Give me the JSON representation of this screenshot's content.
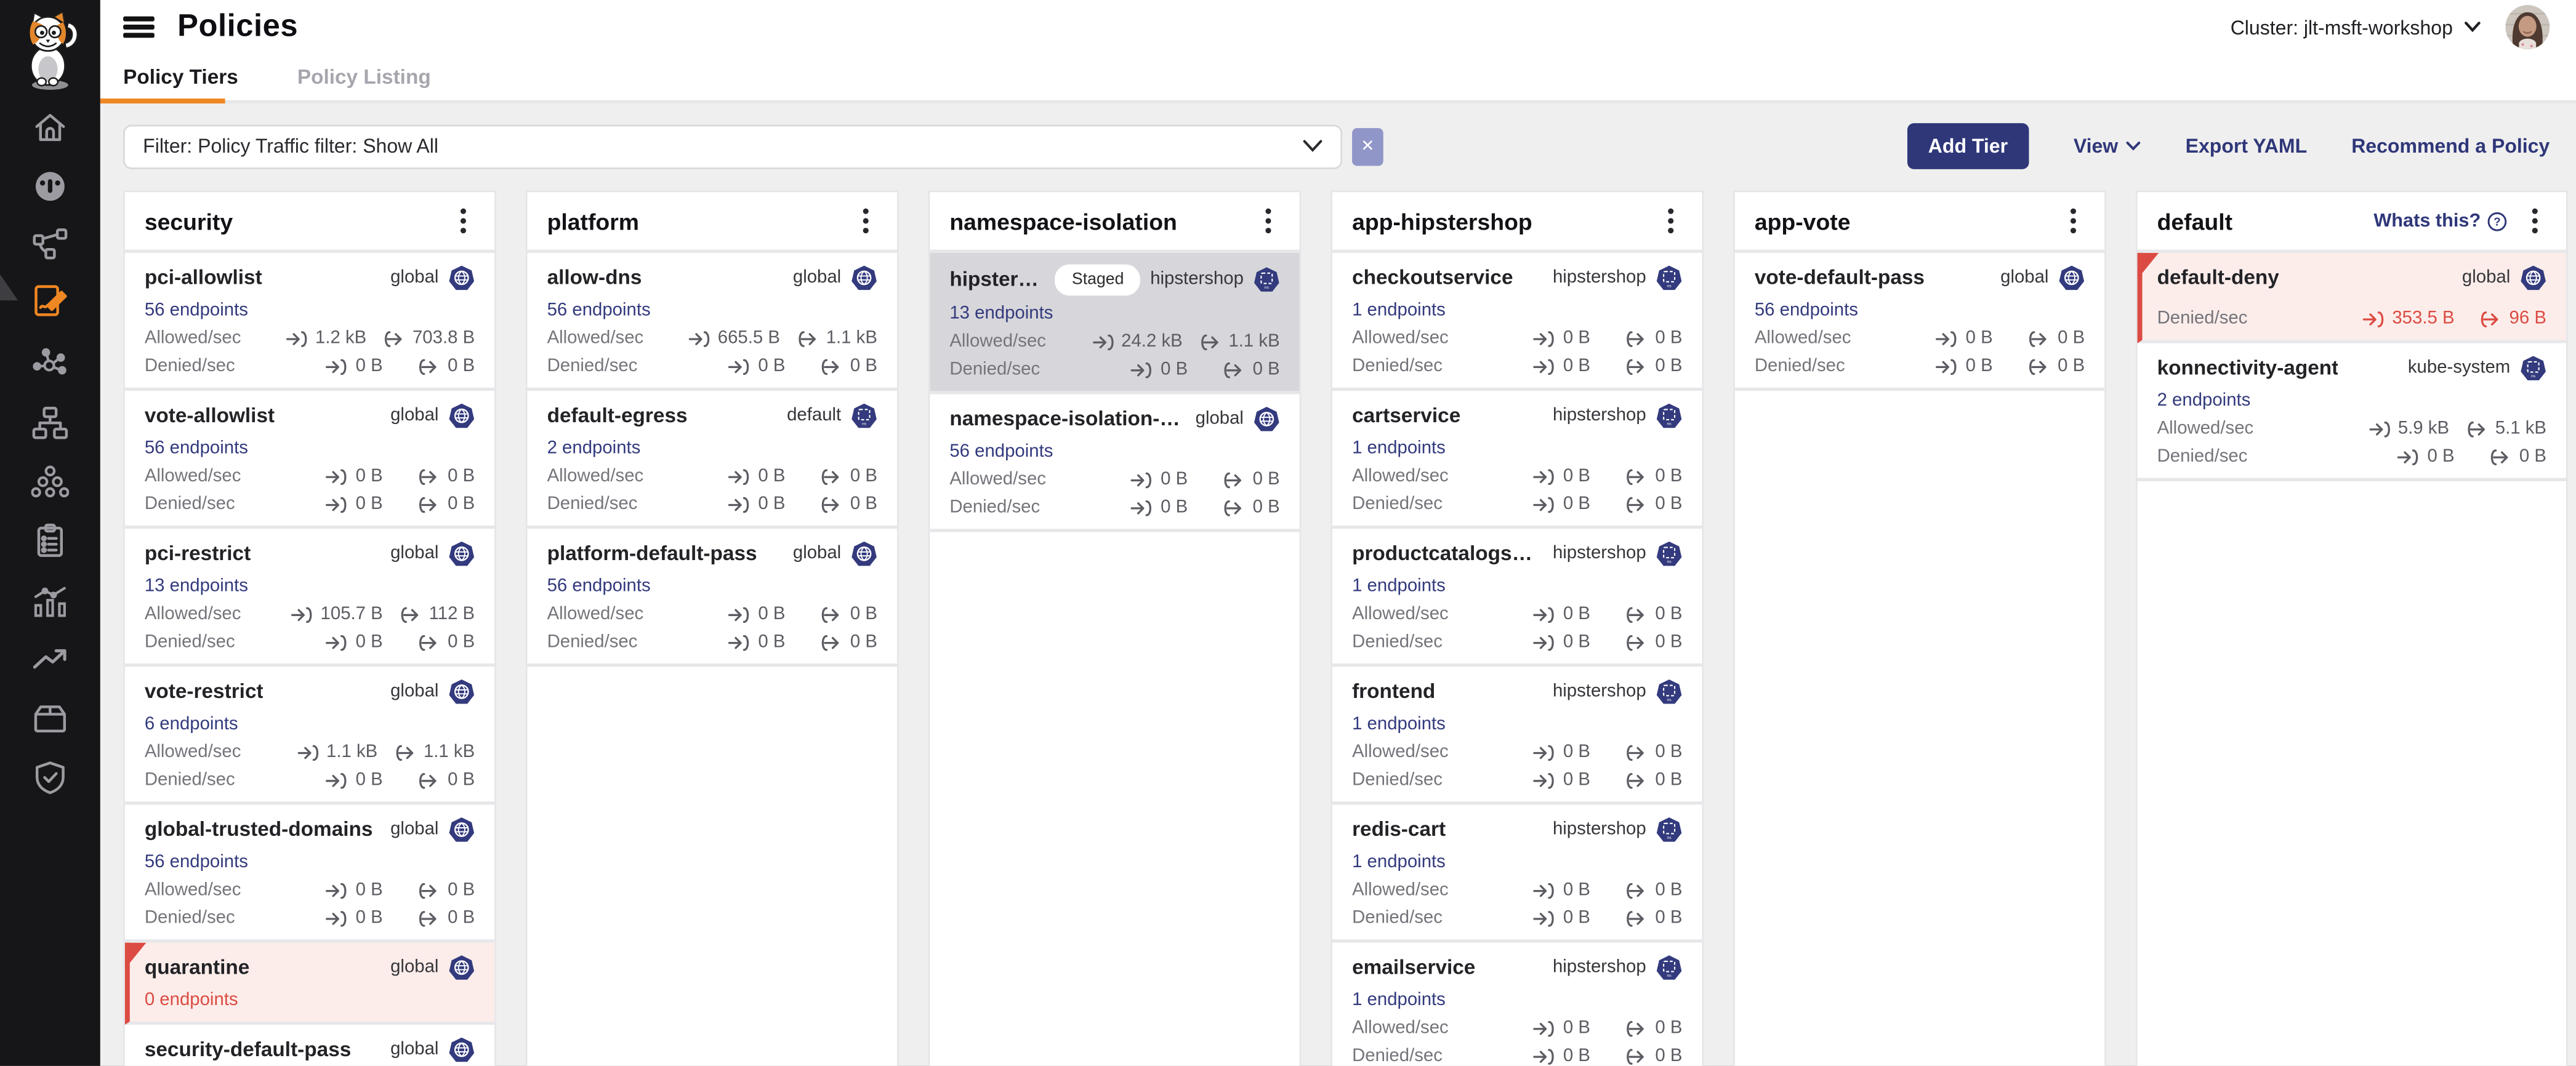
{
  "header": {
    "title": "Policies",
    "cluster_label": "Cluster: jlt-msft-workshop"
  },
  "tabs": {
    "policy_tiers": "Policy Tiers",
    "policy_listing": "Policy Listing"
  },
  "toolbar": {
    "filter_value": "Filter: Policy Traffic filter: Show All",
    "clear_button": "✕",
    "add_tier": "Add Tier",
    "view": "View",
    "export_yaml": "Export YAML",
    "recommend_policy": "Recommend a Policy"
  },
  "labels": {
    "allowed": "Allowed/sec",
    "denied": "Denied/sec",
    "staged": "Staged",
    "whats_this": "Whats this?"
  },
  "sidebar": {
    "icons": [
      "home-icon",
      "dashboard-icon",
      "service-graph-icon",
      "policies-icon",
      "network-sets-icon",
      "endpoints-icon",
      "workloads-icon",
      "compliance-reports-icon",
      "timelines-icon",
      "alerts-icon",
      "image-assurance-icon",
      "threat-defense-icon"
    ],
    "active": "policies-icon"
  },
  "colors": {
    "accent_orange": "#EF8722",
    "brand_navy": "#333A7D",
    "button_navy": "#2F3779",
    "alert_red": "#DC4B43",
    "alert_bg": "#FCEDEA",
    "selected_bg": "#D7D7DB",
    "clear_button_bg": "#9196C8",
    "sidebar_bg": "#161618",
    "page_bg": "#efefef"
  },
  "tiers": [
    {
      "name": "security",
      "cards": [
        {
          "title": "pci-allowlist",
          "scope": "global",
          "icon": "globe",
          "endpoints": "56 endpoints",
          "allowed": {
            "in": "1.2 kB",
            "out": "703.8 B"
          },
          "denied": {
            "in": "0 B",
            "out": "0 B"
          }
        },
        {
          "title": "vote-allowlist",
          "scope": "global",
          "icon": "globe",
          "endpoints": "56 endpoints",
          "allowed": {
            "in": "0 B",
            "out": "0 B"
          },
          "denied": {
            "in": "0 B",
            "out": "0 B"
          }
        },
        {
          "title": "pci-restrict",
          "scope": "global",
          "icon": "globe",
          "endpoints": "13 endpoints",
          "allowed": {
            "in": "105.7 B",
            "out": "112 B"
          },
          "denied": {
            "in": "0 B",
            "out": "0 B"
          }
        },
        {
          "title": "vote-restrict",
          "scope": "global",
          "icon": "globe",
          "endpoints": "6 endpoints",
          "allowed": {
            "in": "1.1 kB",
            "out": "1.1 kB"
          },
          "denied": {
            "in": "0 B",
            "out": "0 B"
          }
        },
        {
          "title": "global-trusted-domains",
          "scope": "global",
          "icon": "globe",
          "endpoints": "56 endpoints",
          "allowed": {
            "in": "0 B",
            "out": "0 B"
          },
          "denied": {
            "in": "0 B",
            "out": "0 B"
          }
        },
        {
          "title": "quarantine",
          "scope": "global",
          "icon": "globe",
          "endpoints": "0 endpoints",
          "alert": true
        },
        {
          "title": "security-default-pass",
          "scope": "global",
          "icon": "globe"
        }
      ]
    },
    {
      "name": "platform",
      "cards": [
        {
          "title": "allow-dns",
          "scope": "global",
          "icon": "globe",
          "endpoints": "56 endpoints",
          "allowed": {
            "in": "665.5 B",
            "out": "1.1 kB"
          },
          "denied": {
            "in": "0 B",
            "out": "0 B"
          }
        },
        {
          "title": "default-egress",
          "scope": "default",
          "icon": "ns",
          "endpoints": "2 endpoints",
          "allowed": {
            "in": "0 B",
            "out": "0 B"
          },
          "denied": {
            "in": "0 B",
            "out": "0 B"
          }
        },
        {
          "title": "platform-default-pass",
          "scope": "global",
          "icon": "globe",
          "endpoints": "56 endpoints",
          "allowed": {
            "in": "0 B",
            "out": "0 B"
          },
          "denied": {
            "in": "0 B",
            "out": "0 B"
          }
        }
      ]
    },
    {
      "name": "namespace-isolation",
      "cards": [
        {
          "title": "hipstershop-gh…",
          "staged": true,
          "selected": true,
          "scope": "hipstershop",
          "icon": "ns",
          "endpoints": "13 endpoints",
          "allowed": {
            "in": "24.2 kB",
            "out": "1.1 kB"
          },
          "denied": {
            "in": "0 B",
            "out": "0 B"
          }
        },
        {
          "title": "namespace-isolation-default-p…",
          "scope": "global",
          "icon": "globe",
          "endpoints": "56 endpoints",
          "allowed": {
            "in": "0 B",
            "out": "0 B"
          },
          "denied": {
            "in": "0 B",
            "out": "0 B"
          }
        }
      ]
    },
    {
      "name": "app-hipstershop",
      "cards": [
        {
          "title": "checkoutservice",
          "scope": "hipstershop",
          "icon": "ns",
          "endpoints": "1 endpoints",
          "allowed": {
            "in": "0 B",
            "out": "0 B"
          },
          "denied": {
            "in": "0 B",
            "out": "0 B"
          }
        },
        {
          "title": "cartservice",
          "scope": "hipstershop",
          "icon": "ns",
          "endpoints": "1 endpoints",
          "allowed": {
            "in": "0 B",
            "out": "0 B"
          },
          "denied": {
            "in": "0 B",
            "out": "0 B"
          }
        },
        {
          "title": "productcatalogservice",
          "scope": "hipstershop",
          "icon": "ns",
          "endpoints": "1 endpoints",
          "allowed": {
            "in": "0 B",
            "out": "0 B"
          },
          "denied": {
            "in": "0 B",
            "out": "0 B"
          }
        },
        {
          "title": "frontend",
          "scope": "hipstershop",
          "icon": "ns",
          "endpoints": "1 endpoints",
          "allowed": {
            "in": "0 B",
            "out": "0 B"
          },
          "denied": {
            "in": "0 B",
            "out": "0 B"
          }
        },
        {
          "title": "redis-cart",
          "scope": "hipstershop",
          "icon": "ns",
          "endpoints": "1 endpoints",
          "allowed": {
            "in": "0 B",
            "out": "0 B"
          },
          "denied": {
            "in": "0 B",
            "out": "0 B"
          }
        },
        {
          "title": "emailservice",
          "scope": "hipstershop",
          "icon": "ns",
          "endpoints": "1 endpoints",
          "allowed": {
            "in": "0 B",
            "out": "0 B"
          },
          "denied": {
            "in": "0 B",
            "out": "0 B"
          }
        }
      ]
    },
    {
      "name": "app-vote",
      "cards": [
        {
          "title": "vote-default-pass",
          "scope": "global",
          "icon": "globe",
          "endpoints": "56 endpoints",
          "allowed": {
            "in": "0 B",
            "out": "0 B"
          },
          "denied": {
            "in": "0 B",
            "out": "0 B"
          }
        }
      ]
    },
    {
      "name": "default",
      "wide": true,
      "help_link": "Whats this?",
      "cards": [
        {
          "title": "default-deny",
          "scope": "global",
          "icon": "globe",
          "alert": true,
          "denied": {
            "in": "353.5 B",
            "out": "96 B"
          }
        },
        {
          "title": "konnectivity-agent",
          "scope": "kube-system",
          "icon": "ns",
          "endpoints": "2 endpoints",
          "allowed": {
            "in": "5.9 kB",
            "out": "5.1 kB"
          },
          "denied": {
            "in": "0 B",
            "out": "0 B"
          }
        }
      ]
    }
  ]
}
